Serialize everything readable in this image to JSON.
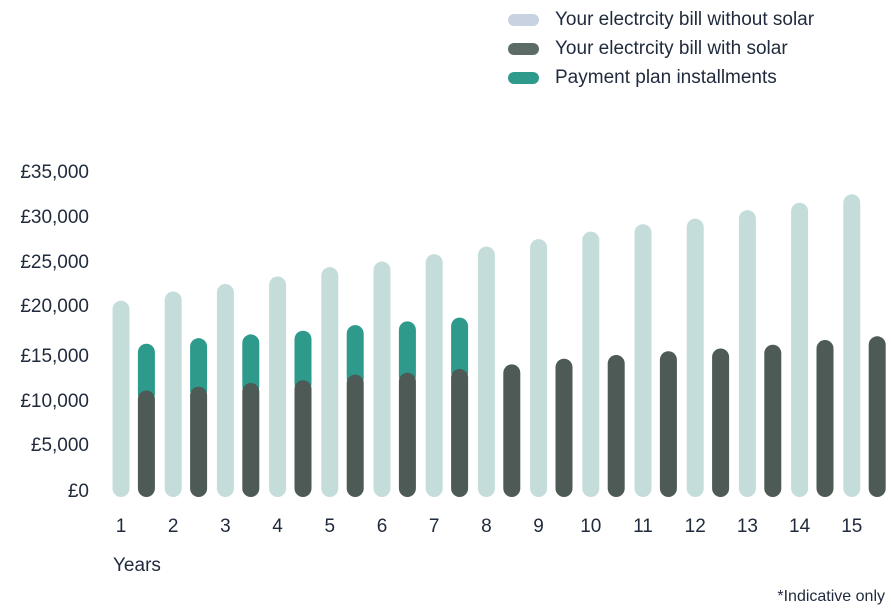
{
  "chart_data": {
    "type": "bar",
    "categories": [
      "1",
      "2",
      "3",
      "4",
      "5",
      "6",
      "7",
      "8",
      "9",
      "10",
      "11",
      "12",
      "13",
      "14",
      "15"
    ],
    "y_ticks": [
      "£0",
      "£5,000",
      "£10,000",
      "£15,000",
      "£20,000",
      "£25,000",
      "£30,000",
      "£35,000"
    ],
    "ylim": [
      0,
      35000
    ],
    "xlabel": "Years",
    "ylabel": "",
    "grid": false,
    "legend_position": "top-right",
    "series": [
      {
        "name": "Your electrcity bill without solar",
        "color": "#c5ddda",
        "legend_color": "#c8d2e0",
        "values": [
          21000,
          22000,
          22800,
          23600,
          24600,
          25200,
          26000,
          26800,
          27600,
          28400,
          29200,
          29800,
          30700,
          31500,
          32400
        ]
      },
      {
        "name": "Your electrcity bill with solar",
        "color": "#4d5a55",
        "values": [
          11400,
          11800,
          12200,
          12500,
          13100,
          13300,
          13700,
          14200,
          14800,
          15200,
          15600,
          15900,
          16300,
          16800,
          17200
        ]
      },
      {
        "name": "Payment plan installments",
        "color": "#2d9a8c",
        "values": [
          5000,
          5200,
          5200,
          5300,
          5300,
          5500,
          5500,
          0,
          0,
          0,
          0,
          0,
          0,
          0,
          0
        ]
      }
    ]
  },
  "footnote": "*Indicative only"
}
